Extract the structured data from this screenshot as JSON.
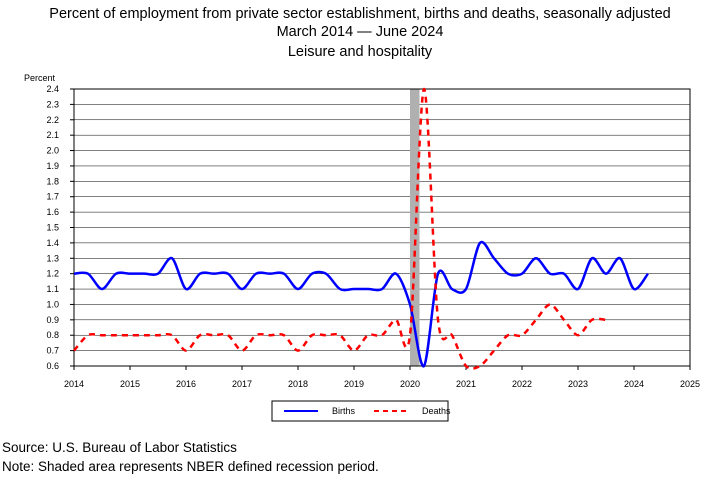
{
  "chart_data": {
    "type": "line",
    "title": "Percent of employment from private sector establishment, births and deaths, seasonally adjusted",
    "subtitle_start": "March 2014",
    "subtitle_sep": "—",
    "subtitle_end": "June 2024",
    "subtitle2": "Leisure and hospitality",
    "ylabel": "Percent",
    "xlabel": "",
    "ylim": [
      0.6,
      2.4
    ],
    "xlim": [
      2014,
      2025
    ],
    "yticks": [
      "0.6",
      "0.7",
      "0.8",
      "0.9",
      "1.0",
      "1.1",
      "1.2",
      "1.3",
      "1.4",
      "1.5",
      "1.6",
      "1.7",
      "1.8",
      "1.9",
      "2.0",
      "2.1",
      "2.2",
      "2.3",
      "2.4"
    ],
    "xticks": [
      "2014",
      "2015",
      "2016",
      "2017",
      "2018",
      "2019",
      "2020",
      "2021",
      "2022",
      "2023",
      "2024",
      "2025"
    ],
    "grid": true,
    "legend_position": "bottom",
    "recession": {
      "start": 2020.0,
      "end": 2020.17
    },
    "series": [
      {
        "name": "Births",
        "color": "#0000ff",
        "style": "solid",
        "x": [
          2014.0,
          2014.25,
          2014.5,
          2014.75,
          2015.0,
          2015.25,
          2015.5,
          2015.75,
          2016.0,
          2016.25,
          2016.5,
          2016.75,
          2017.0,
          2017.25,
          2017.5,
          2017.75,
          2018.0,
          2018.25,
          2018.5,
          2018.75,
          2019.0,
          2019.25,
          2019.5,
          2019.75,
          2020.0,
          2020.25,
          2020.5,
          2020.75,
          2021.0,
          2021.25,
          2021.5,
          2021.75,
          2022.0,
          2022.25,
          2022.5,
          2022.75,
          2023.0,
          2023.25,
          2023.5,
          2023.75,
          2024.0,
          2024.25
        ],
        "values": [
          1.2,
          1.2,
          1.1,
          1.2,
          1.2,
          1.2,
          1.2,
          1.3,
          1.1,
          1.2,
          1.2,
          1.2,
          1.1,
          1.2,
          1.2,
          1.2,
          1.1,
          1.2,
          1.2,
          1.1,
          1.1,
          1.1,
          1.1,
          1.2,
          1.0,
          0.6,
          1.2,
          1.1,
          1.1,
          1.4,
          1.3,
          1.2,
          1.2,
          1.3,
          1.2,
          1.2,
          1.1,
          1.3,
          1.2,
          1.3,
          1.1,
          1.2
        ]
      },
      {
        "name": "Deaths",
        "color": "#ff0000",
        "style": "dashed",
        "x": [
          2014.0,
          2014.25,
          2014.5,
          2014.75,
          2015.0,
          2015.25,
          2015.5,
          2015.75,
          2016.0,
          2016.25,
          2016.5,
          2016.75,
          2017.0,
          2017.25,
          2017.5,
          2017.75,
          2018.0,
          2018.25,
          2018.5,
          2018.75,
          2019.0,
          2019.25,
          2019.5,
          2019.75,
          2020.0,
          2020.25,
          2020.5,
          2020.75,
          2021.0,
          2021.25,
          2021.5,
          2021.75,
          2022.0,
          2022.25,
          2022.5,
          2022.75,
          2023.0,
          2023.25,
          2023.5
        ],
        "values": [
          0.7,
          0.8,
          0.8,
          0.8,
          0.8,
          0.8,
          0.8,
          0.8,
          0.7,
          0.8,
          0.8,
          0.8,
          0.7,
          0.8,
          0.8,
          0.8,
          0.7,
          0.8,
          0.8,
          0.8,
          0.7,
          0.8,
          0.8,
          0.9,
          0.8,
          2.4,
          0.9,
          0.8,
          0.6,
          0.6,
          0.7,
          0.8,
          0.8,
          0.9,
          1.0,
          0.9,
          0.8,
          0.9,
          0.9
        ]
      }
    ]
  },
  "footer": {
    "source": "Source: U.S. Bureau of Labor Statistics",
    "note": "Note: Shaded area represents NBER defined recession period."
  }
}
